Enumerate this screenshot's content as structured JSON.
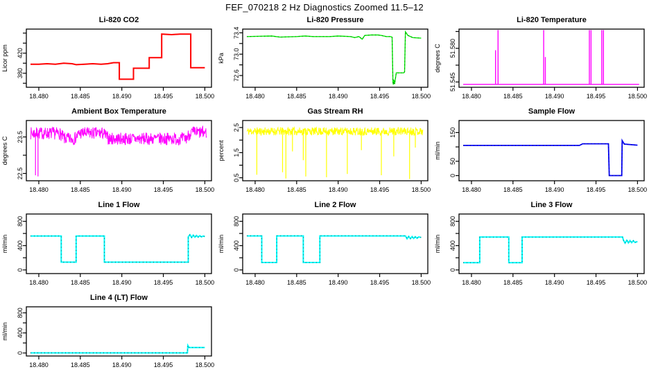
{
  "title": "FEF_070218  2 Hz Diagnostics Zoomed 11.5–12",
  "axis_color": "#000000",
  "x_axis": {
    "lim": [
      18.4785,
      18.5008
    ],
    "ticks": [
      [
        18.48,
        "18.480"
      ],
      [
        18.485,
        "18.485"
      ],
      [
        18.49,
        "18.490"
      ],
      [
        18.495,
        "18.495"
      ],
      [
        18.5,
        "18.500"
      ]
    ]
  },
  "chart_data": [
    {
      "type": "line",
      "title": "Li-820 CO2",
      "ylabel": "Licor ppm",
      "color": "#FF0000",
      "lw": 2,
      "dots": false,
      "ylim": [
        352,
        468
      ],
      "yticks": [
        [
          360,
          ""
        ],
        [
          380,
          "380"
        ],
        [
          400,
          ""
        ],
        [
          420,
          "420"
        ],
        [
          440,
          ""
        ],
        [
          460,
          ""
        ]
      ],
      "lines": [
        [
          [
            18.479,
            398
          ],
          [
            18.48,
            398
          ],
          [
            18.481,
            399
          ],
          [
            18.482,
            398
          ],
          [
            18.483,
            400
          ],
          [
            18.484,
            399
          ],
          [
            18.4845,
            397
          ],
          [
            18.4855,
            398
          ],
          [
            18.4865,
            399
          ],
          [
            18.4875,
            398
          ],
          [
            18.4883,
            399
          ],
          [
            18.489,
            401
          ],
          [
            18.4897,
            401
          ],
          [
            18.4897,
            368
          ],
          [
            18.4914,
            368
          ],
          [
            18.4914,
            390
          ],
          [
            18.4933,
            390
          ],
          [
            18.4933,
            411
          ],
          [
            18.4948,
            411
          ],
          [
            18.4948,
            458
          ],
          [
            18.496,
            457
          ],
          [
            18.497,
            458
          ],
          [
            18.4983,
            458
          ],
          [
            18.4983,
            391
          ],
          [
            18.5,
            391
          ]
        ]
      ]
    },
    {
      "type": "line",
      "title": "Li-820 Pressure",
      "ylabel": "kPa",
      "color": "#00EE00",
      "lw": 1.4,
      "dots": true,
      "ylim": [
        72.38,
        73.47
      ],
      "yticks": [
        [
          72.6,
          "72.6"
        ],
        [
          72.8,
          ""
        ],
        [
          73.0,
          "73.0"
        ],
        [
          73.2,
          ""
        ],
        [
          73.4,
          "73.4"
        ]
      ],
      "lines": [
        [
          [
            18.479,
            73.33
          ],
          [
            18.482,
            73.34
          ],
          [
            18.483,
            73.32
          ],
          [
            18.485,
            73.33
          ],
          [
            18.486,
            73.34
          ],
          [
            18.487,
            73.33
          ],
          [
            18.489,
            73.33
          ],
          [
            18.49,
            73.34
          ],
          [
            18.4915,
            73.33
          ],
          [
            18.492,
            73.31
          ],
          [
            18.4925,
            73.33
          ],
          [
            18.4929,
            73.28
          ],
          [
            18.4932,
            73.35
          ],
          [
            18.494,
            73.36
          ],
          [
            18.4948,
            73.36
          ],
          [
            18.4952,
            73.35
          ],
          [
            18.4958,
            73.33
          ],
          [
            18.4963,
            73.33
          ],
          [
            18.4965,
            73.32
          ],
          [
            18.4966,
            72.48
          ],
          [
            18.49665,
            72.43
          ],
          [
            18.4967,
            72.52
          ],
          [
            18.4968,
            72.44
          ],
          [
            18.497,
            72.65
          ],
          [
            18.4979,
            72.65
          ],
          [
            18.498,
            72.67
          ],
          [
            18.4981,
            73.42
          ],
          [
            18.4984,
            73.35
          ],
          [
            18.499,
            73.31
          ],
          [
            18.5,
            73.3
          ]
        ]
      ]
    },
    {
      "type": "line",
      "title": "Li-820 Temperature",
      "ylabel": "degrees C",
      "color": "#FF00FF",
      "lw": 1.4,
      "dots": false,
      "ylim": [
        51.5395,
        51.6
      ],
      "yticks": [
        [
          51.545,
          "51.545"
        ],
        [
          51.5625,
          ""
        ],
        [
          51.58,
          "51.580"
        ],
        [
          51.5975,
          ""
        ]
      ],
      "lines": [
        [
          [
            18.479,
            51.5425
          ],
          [
            18.5002,
            51.5425
          ]
        ],
        [
          [
            18.4829,
            51.5425
          ],
          [
            18.4829,
            51.578
          ]
        ],
        [
          [
            18.4832,
            51.5425
          ],
          [
            18.4832,
            51.599
          ]
        ],
        [
          [
            18.4887,
            51.5425
          ],
          [
            18.4887,
            51.599
          ]
        ],
        [
          [
            18.4889,
            51.5425
          ],
          [
            18.4889,
            51.571
          ]
        ],
        [
          [
            18.4942,
            51.5425
          ],
          [
            18.4942,
            51.599
          ]
        ],
        [
          [
            18.4944,
            51.5425
          ],
          [
            18.4944,
            51.599
          ]
        ],
        [
          [
            18.4957,
            51.5425
          ],
          [
            18.4957,
            51.599
          ]
        ],
        [
          [
            18.4959,
            51.5425
          ],
          [
            18.4959,
            51.599
          ]
        ]
      ]
    },
    {
      "type": "line",
      "title": "Ambient Box Temperature",
      "ylabel": "degrees C",
      "color": "#FF00FF",
      "lw": 1,
      "dots": false,
      "ylim": [
        22.3,
        23.95
      ],
      "yticks": [
        [
          22.5,
          "22.5"
        ],
        [
          23.0,
          ""
        ],
        [
          23.5,
          "23.5"
        ]
      ],
      "lines": [],
      "noisy": {
        "base": [
          [
            18.479,
            23.6
          ],
          [
            18.4825,
            23.6
          ],
          [
            18.4831,
            23.45
          ],
          [
            18.4843,
            23.45
          ],
          [
            18.4849,
            23.6
          ],
          [
            18.4878,
            23.6
          ],
          [
            18.4884,
            23.45
          ],
          [
            18.4977,
            23.45
          ],
          [
            18.4983,
            23.62
          ],
          [
            18.5005,
            23.62
          ]
        ],
        "amp": 0.17,
        "n": 560,
        "seed": 7,
        "spikes": [
          [
            18.4796,
            22.45
          ],
          [
            18.4799,
            22.42
          ]
        ]
      }
    },
    {
      "type": "line",
      "title": "Gas Stream RH",
      "ylabel": "percent",
      "color": "#FFFF00",
      "lw": 1,
      "dots": false,
      "ylim": [
        0.38,
        2.78
      ],
      "yticks": [
        [
          0.5,
          "0.5"
        ],
        [
          1.0,
          ""
        ],
        [
          1.5,
          "1.5"
        ],
        [
          2.0,
          ""
        ],
        [
          2.5,
          "2.5"
        ]
      ],
      "lines": [],
      "noisy": {
        "base": [
          [
            18.479,
            2.35
          ],
          [
            18.5005,
            2.35
          ]
        ],
        "amp": 0.16,
        "n": 560,
        "seed": 11,
        "spikes": [
          [
            18.4802,
            0.62
          ],
          [
            18.4833,
            0.72
          ],
          [
            18.4837,
            0.47
          ],
          [
            18.4845,
            1.55
          ],
          [
            18.4858,
            1.2
          ],
          [
            18.4861,
            0.55
          ],
          [
            18.4886,
            0.52
          ],
          [
            18.4911,
            0.65
          ],
          [
            18.4928,
            1.6
          ],
          [
            18.4952,
            0.6
          ],
          [
            18.4967,
            1.35
          ],
          [
            18.4986,
            0.45
          ],
          [
            18.4993,
            1.7
          ]
        ]
      }
    },
    {
      "type": "line",
      "title": "Sample Flow",
      "ylabel": "ml/min",
      "color": "#0000FF",
      "lw": 1.8,
      "dots": true,
      "ylim": [
        -18,
        192
      ],
      "yticks": [
        [
          0,
          "0"
        ],
        [
          50,
          "50"
        ],
        [
          100,
          ""
        ],
        [
          150,
          "150"
        ]
      ],
      "lines": [
        [
          [
            18.479,
            105
          ],
          [
            18.493,
            105
          ],
          [
            18.4934,
            111
          ],
          [
            18.4965,
            111
          ],
          [
            18.4966,
            0
          ],
          [
            18.4981,
            0
          ],
          [
            18.49815,
            122
          ],
          [
            18.4984,
            110
          ],
          [
            18.5,
            106
          ]
        ]
      ]
    },
    {
      "type": "line",
      "title": "Line 1 Flow",
      "ylabel": "ml/min",
      "color": "#00FFFF",
      "lw": 2,
      "dots": true,
      "ylim": [
        -60,
        920
      ],
      "yticks": [
        [
          0,
          "0"
        ],
        [
          200,
          ""
        ],
        [
          400,
          "400"
        ],
        [
          600,
          ""
        ],
        [
          800,
          "800"
        ]
      ],
      "lines": [
        [
          [
            18.479,
            558
          ],
          [
            18.4827,
            558
          ],
          [
            18.4827,
            128
          ],
          [
            18.4845,
            128
          ],
          [
            18.4845,
            558
          ],
          [
            18.4879,
            558
          ],
          [
            18.4879,
            128
          ],
          [
            18.498,
            128
          ],
          [
            18.498,
            545
          ],
          [
            18.4982,
            578
          ],
          [
            18.4984,
            535
          ],
          [
            18.4986,
            572
          ],
          [
            18.4988,
            538
          ],
          [
            18.499,
            568
          ],
          [
            18.4992,
            540
          ],
          [
            18.4994,
            563
          ],
          [
            18.4996,
            543
          ],
          [
            18.4998,
            558
          ],
          [
            18.5,
            550
          ]
        ]
      ]
    },
    {
      "type": "line",
      "title": "Line 2 Flow",
      "ylabel": "ml/min",
      "color": "#00FFFF",
      "lw": 2,
      "dots": true,
      "ylim": [
        -60,
        920
      ],
      "yticks": [
        [
          0,
          "0"
        ],
        [
          200,
          ""
        ],
        [
          400,
          "400"
        ],
        [
          600,
          ""
        ],
        [
          800,
          "800"
        ]
      ],
      "lines": [
        [
          [
            18.479,
            560
          ],
          [
            18.4808,
            560
          ],
          [
            18.4808,
            122
          ],
          [
            18.4826,
            122
          ],
          [
            18.4826,
            560
          ],
          [
            18.4858,
            560
          ],
          [
            18.4858,
            122
          ],
          [
            18.4878,
            122
          ],
          [
            18.4878,
            560
          ],
          [
            18.4981,
            560
          ],
          [
            18.4983,
            512
          ],
          [
            18.4985,
            552
          ],
          [
            18.4987,
            515
          ],
          [
            18.4989,
            549
          ],
          [
            18.4991,
            518
          ],
          [
            18.4993,
            546
          ],
          [
            18.4995,
            521
          ],
          [
            18.4997,
            543
          ],
          [
            18.5,
            535
          ]
        ]
      ]
    },
    {
      "type": "line",
      "title": "Line 3 Flow",
      "ylabel": "ml/min",
      "color": "#00FFFF",
      "lw": 2,
      "dots": true,
      "ylim": [
        -60,
        920
      ],
      "yticks": [
        [
          0,
          "0"
        ],
        [
          200,
          ""
        ],
        [
          400,
          "400"
        ],
        [
          600,
          ""
        ],
        [
          800,
          "800"
        ]
      ],
      "lines": [
        [
          [
            18.479,
            120
          ],
          [
            18.481,
            120
          ],
          [
            18.481,
            540
          ],
          [
            18.4845,
            540
          ],
          [
            18.4845,
            120
          ],
          [
            18.4861,
            120
          ],
          [
            18.4861,
            540
          ],
          [
            18.4982,
            540
          ],
          [
            18.4983,
            490
          ],
          [
            18.4985,
            442
          ],
          [
            18.4987,
            488
          ],
          [
            18.4989,
            445
          ],
          [
            18.4991,
            484
          ],
          [
            18.4993,
            448
          ],
          [
            18.4995,
            480
          ],
          [
            18.4997,
            452
          ],
          [
            18.5,
            468
          ]
        ]
      ]
    },
    {
      "type": "line",
      "title": "Line 4 (LT) Flow",
      "ylabel": "ml/min",
      "color": "#00FFFF",
      "lw": 2,
      "dots": true,
      "ylim": [
        -60,
        920
      ],
      "yticks": [
        [
          0,
          "0"
        ],
        [
          200,
          ""
        ],
        [
          400,
          "400"
        ],
        [
          600,
          ""
        ],
        [
          800,
          "800"
        ]
      ],
      "lines": [
        [
          [
            18.479,
            2
          ],
          [
            18.4979,
            2
          ],
          [
            18.49795,
            150
          ],
          [
            18.4981,
            108
          ],
          [
            18.5,
            108
          ]
        ]
      ]
    }
  ]
}
